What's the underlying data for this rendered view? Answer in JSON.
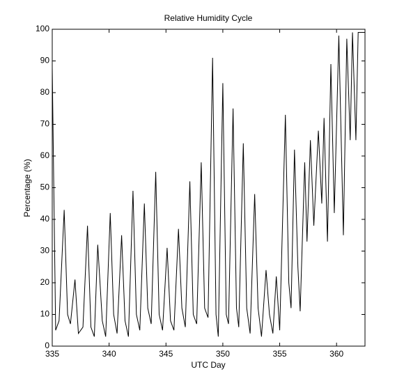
{
  "chart_data": {
    "type": "line",
    "title": "Relative Humidity Cycle",
    "x_label": "UTC Day",
    "y_label": "Percentage (%)",
    "x": [
      335.0,
      335.3,
      335.6,
      336.05,
      336.35,
      336.6,
      337.0,
      337.3,
      337.7,
      338.1,
      338.4,
      338.7,
      339.0,
      339.4,
      339.7,
      340.1,
      340.4,
      340.7,
      341.1,
      341.4,
      341.7,
      342.1,
      342.4,
      342.7,
      343.1,
      343.4,
      343.7,
      344.1,
      344.4,
      344.7,
      345.1,
      345.4,
      345.7,
      346.1,
      346.4,
      346.7,
      347.1,
      347.4,
      347.7,
      348.1,
      348.4,
      348.7,
      349.1,
      349.4,
      349.6,
      350.0,
      350.3,
      350.5,
      350.9,
      351.2,
      351.4,
      351.8,
      352.1,
      352.4,
      352.8,
      353.1,
      353.4,
      353.8,
      354.1,
      354.4,
      354.7,
      355.0,
      355.5,
      355.8,
      356.0,
      356.3,
      356.6,
      356.8,
      357.2,
      357.4,
      357.7,
      358.0,
      358.4,
      358.7,
      358.9,
      359.2,
      359.5,
      359.8,
      360.2,
      360.6,
      360.9,
      361.2,
      361.4,
      361.7,
      361.9,
      362.5
    ],
    "series": [
      {
        "name": "Relative Humidity",
        "color": "#000000",
        "values": [
          88,
          5,
          8,
          43,
          10,
          7,
          21,
          4,
          6,
          38,
          6,
          3,
          32,
          8,
          3,
          42,
          10,
          4,
          35,
          8,
          3,
          49,
          10,
          5,
          45,
          12,
          7,
          55,
          10,
          5,
          31,
          8,
          5,
          37,
          12,
          6,
          52,
          10,
          7,
          58,
          12,
          9,
          91,
          10,
          3,
          83,
          10,
          7,
          75,
          12,
          6,
          64,
          12,
          4,
          48,
          12,
          3,
          24,
          10,
          4,
          22,
          5,
          73,
          20,
          12,
          62,
          25,
          11,
          58,
          33,
          65,
          38,
          68,
          45,
          72,
          33,
          89,
          42,
          98,
          35,
          97,
          65,
          99,
          65,
          99,
          99
        ]
      }
    ],
    "xlim": [
      335,
      362.5
    ],
    "xticks": [
      335,
      340,
      345,
      350,
      355,
      360
    ],
    "ylim": [
      0,
      100
    ],
    "yticks": [
      0,
      10,
      20,
      30,
      40,
      50,
      60,
      70,
      80,
      90,
      100
    ]
  }
}
